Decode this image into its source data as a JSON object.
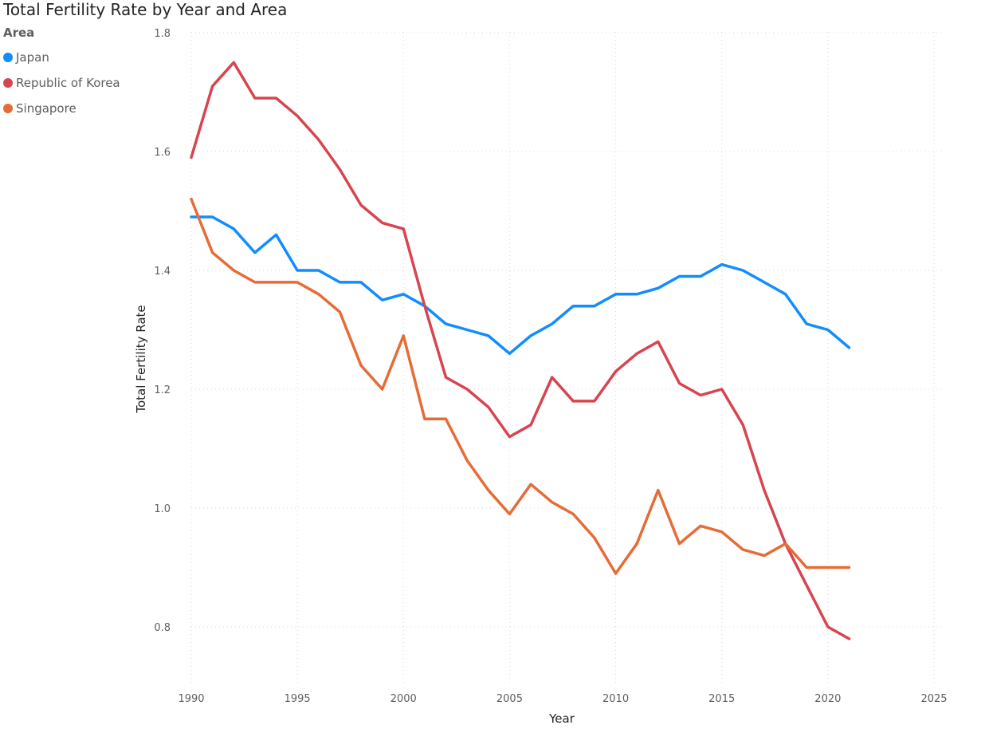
{
  "chart_data": {
    "type": "line",
    "title": "Total Fertility Rate by Year and Area",
    "xlabel": "Year",
    "ylabel": "Total Fertility Rate",
    "legend_title": "Area",
    "legend_position": "top-left",
    "grid": true,
    "xlim": [
      1990,
      2025
    ],
    "ylim": [
      0.7,
      1.8
    ],
    "x_ticks": [
      1990,
      1995,
      2000,
      2005,
      2010,
      2015,
      2020,
      2025
    ],
    "y_ticks": [
      0.8,
      1.0,
      1.2,
      1.4,
      1.6,
      1.8
    ],
    "y_tick_labels": [
      "0.8",
      "1.0",
      "1.2",
      "1.4",
      "1.6",
      "1.8"
    ],
    "x": [
      1990,
      1991,
      1992,
      1993,
      1994,
      1995,
      1996,
      1997,
      1998,
      1999,
      2000,
      2001,
      2002,
      2003,
      2004,
      2005,
      2006,
      2007,
      2008,
      2009,
      2010,
      2011,
      2012,
      2013,
      2014,
      2015,
      2016,
      2017,
      2018,
      2019,
      2020,
      2021
    ],
    "series": [
      {
        "name": "Japan",
        "color": "#118dff",
        "values": [
          1.49,
          1.49,
          1.47,
          1.43,
          1.46,
          1.4,
          1.4,
          1.38,
          1.38,
          1.35,
          1.36,
          1.34,
          1.31,
          1.3,
          1.29,
          1.26,
          1.29,
          1.31,
          1.34,
          1.34,
          1.36,
          1.36,
          1.37,
          1.39,
          1.39,
          1.41,
          1.4,
          1.38,
          1.36,
          1.31,
          1.3,
          1.27
        ]
      },
      {
        "name": "Republic of Korea",
        "color": "#d64550",
        "values": [
          1.59,
          1.71,
          1.75,
          1.69,
          1.69,
          1.66,
          1.62,
          1.57,
          1.51,
          1.48,
          1.47,
          1.34,
          1.22,
          1.2,
          1.17,
          1.12,
          1.14,
          1.22,
          1.18,
          1.18,
          1.23,
          1.26,
          1.28,
          1.21,
          1.19,
          1.2,
          1.14,
          1.03,
          0.94,
          0.87,
          0.8,
          0.78
        ]
      },
      {
        "name": "Singapore",
        "color": "#e66c37",
        "values": [
          1.52,
          1.43,
          1.4,
          1.38,
          1.38,
          1.38,
          1.36,
          1.33,
          1.24,
          1.2,
          1.29,
          1.15,
          1.15,
          1.08,
          1.03,
          0.99,
          1.04,
          1.01,
          0.99,
          0.95,
          0.89,
          0.94,
          1.03,
          0.94,
          0.97,
          0.96,
          0.93,
          0.92,
          0.94,
          0.9,
          0.9,
          0.9
        ]
      }
    ]
  }
}
